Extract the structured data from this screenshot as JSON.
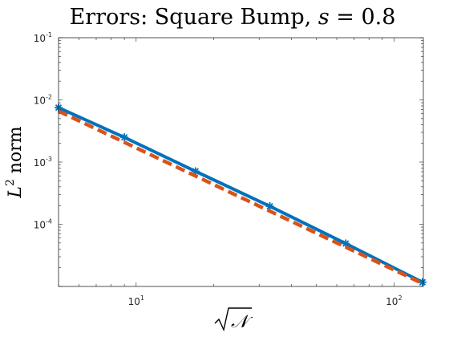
{
  "chart_data": {
    "type": "line",
    "title": "Errors: Square Bump, s = 0.8",
    "xlabel": "√𝒩",
    "ylabel": "L² norm",
    "xscale": "log",
    "yscale": "log",
    "xlim": [
      5,
      130
    ],
    "ylim": [
      1e-05,
      0.1
    ],
    "xticks": [
      {
        "value": 10,
        "base": "10",
        "exp": "1"
      },
      {
        "value": 100,
        "base": "10",
        "exp": "2"
      }
    ],
    "yticks": [
      {
        "value": 0.0001,
        "base": "10",
        "exp": "-4"
      },
      {
        "value": 0.001,
        "base": "10",
        "exp": "-3"
      },
      {
        "value": 0.01,
        "base": "10",
        "exp": "-2"
      },
      {
        "value": 0.1,
        "base": "10",
        "exp": "-1"
      }
    ],
    "grid": false,
    "series": [
      {
        "style": "solid",
        "marker": "star",
        "color": "#0072BD",
        "x": [
          5,
          9,
          17,
          33,
          65,
          129
        ],
        "y": [
          0.0075,
          0.0025,
          0.00071,
          0.000195,
          4.9e-05,
          1.17e-05
        ]
      },
      {
        "style": "dashed",
        "marker": "none",
        "color": "#D95319",
        "x": [
          5,
          129
        ],
        "y": [
          0.0066,
          1.12e-05
        ]
      }
    ]
  }
}
